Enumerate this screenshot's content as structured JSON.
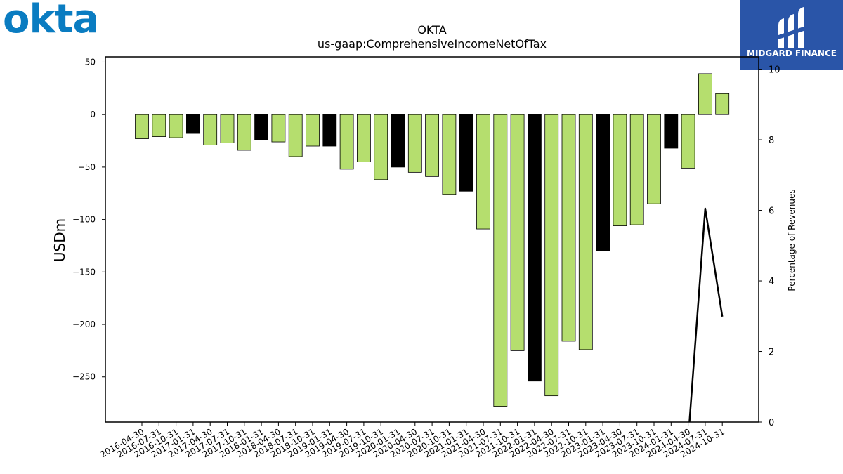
{
  "logos": {
    "left_brand": "okta",
    "right_brand": "MIDGARD FINANCE"
  },
  "chart_data": {
    "type": "bar",
    "title": "OKTA",
    "subtitle": "us-gaap:ComprehensiveIncomeNetOfTax",
    "ylabel": "USDm",
    "y2label": "Percentage of Revenues",
    "ylim": [
      -293,
      55
    ],
    "y2lim": [
      0,
      10.35
    ],
    "yticks": [
      50,
      0,
      -50,
      -100,
      -150,
      -200,
      -250
    ],
    "y2ticks": [
      0,
      2,
      4,
      6,
      8,
      10
    ],
    "categories": [
      "2016-04-30",
      "2016-07-31",
      "2016-10-31",
      "2017-01-31",
      "2017-04-30",
      "2017-07-31",
      "2017-10-31",
      "2018-01-31",
      "2018-04-30",
      "2018-07-31",
      "2018-10-31",
      "2019-01-31",
      "2019-04-30",
      "2019-07-31",
      "2019-10-31",
      "2020-01-31",
      "2020-04-30",
      "2020-07-31",
      "2020-10-31",
      "2021-01-31",
      "2021-04-30",
      "2021-07-31",
      "2021-10-31",
      "2022-01-31",
      "2022-04-30",
      "2022-07-31",
      "2022-10-31",
      "2023-01-31",
      "2023-04-30",
      "2023-07-31",
      "2023-10-31",
      "2024-01-31",
      "2024-04-30",
      "2024-07-31",
      "2024-10-31"
    ],
    "values": [
      -23,
      -21,
      -22,
      -18,
      -29,
      -27,
      -34,
      -24,
      -26,
      -40,
      -30,
      -30,
      -52,
      -45,
      -62,
      -50,
      -55,
      -59,
      -76,
      -73,
      -109,
      -278,
      -225,
      -254,
      -268,
      -216,
      -224,
      -130,
      -106,
      -105,
      -85,
      -32,
      -51,
      39,
      20
    ],
    "highlight": [
      false,
      false,
      false,
      true,
      false,
      false,
      false,
      true,
      false,
      false,
      false,
      true,
      false,
      false,
      false,
      true,
      false,
      false,
      false,
      true,
      false,
      false,
      false,
      true,
      false,
      false,
      false,
      true,
      false,
      false,
      false,
      true,
      false,
      false,
      false
    ],
    "line_series": {
      "name": "Percentage of Revenues",
      "x": [
        "2024-04-30",
        "2024-07-31",
        "2024-10-31"
      ],
      "values": [
        -0.5,
        6.05,
        2.99
      ]
    },
    "colors": {
      "bar": "#b5de6e",
      "highlight": "#000000",
      "line": "#000000"
    },
    "grid": false
  }
}
